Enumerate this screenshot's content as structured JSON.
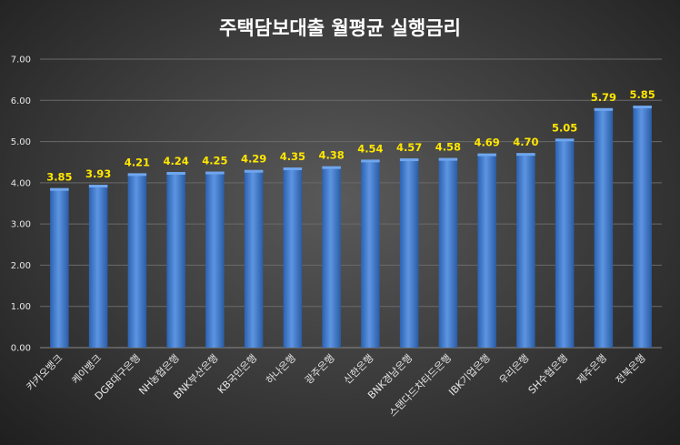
{
  "chart_data": {
    "type": "bar",
    "title": "주택담보대출 월평균 실행금리",
    "categories": [
      "카카오뱅크",
      "케이뱅크",
      "DGB대구은행",
      "NH농협은행",
      "BNK부산은행",
      "KB국민은행",
      "하나은행",
      "광주은행",
      "신한은행",
      "BNK경남은행",
      "스탠다드차타드은행",
      "IBK기업은행",
      "우리은행",
      "SH수협은행",
      "제주은행",
      "전북은행"
    ],
    "values": [
      3.85,
      3.93,
      4.21,
      4.24,
      4.25,
      4.29,
      4.35,
      4.38,
      4.54,
      4.57,
      4.58,
      4.69,
      4.7,
      5.05,
      5.79,
      5.85
    ],
    "value_labels": [
      "3.85",
      "3.93",
      "4.21",
      "4.24",
      "4.25",
      "4.29",
      "4.35",
      "4.38",
      "4.54",
      "4.57",
      "4.58",
      "4.69",
      "4.70",
      "5.05",
      "5.79",
      "5.85"
    ],
    "ylim": [
      0,
      7
    ],
    "yticks": [
      "0.00",
      "1.00",
      "2.00",
      "3.00",
      "4.00",
      "5.00",
      "6.00",
      "7.00"
    ],
    "grid": true,
    "legend": "none",
    "colors": {
      "bar": "#3a78d0",
      "bar_highlight": "#6fa6ee",
      "label": "#ffe600",
      "text": "#e6e6e6"
    }
  }
}
